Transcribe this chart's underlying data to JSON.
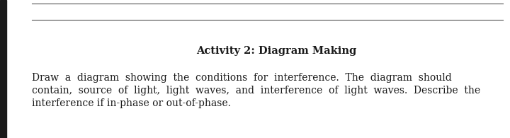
{
  "background_color": "#ffffff",
  "left_bar_color": "#1a1a1a",
  "line_color": "#555555",
  "text_color": "#1a1a1a",
  "title": "Activity 2: Diagram Making",
  "title_fontsize": 10.5,
  "body_line1": "Draw  a  diagram  showing  the  conditions  for  interference.  The  diagram  should",
  "body_line2": "contain,  source  of  light,  light  waves,  and  interference  of  light  waves.  Describe  the",
  "body_line3": "interference if in-phase or out-of-phase.",
  "body_fontsize": 10.0
}
